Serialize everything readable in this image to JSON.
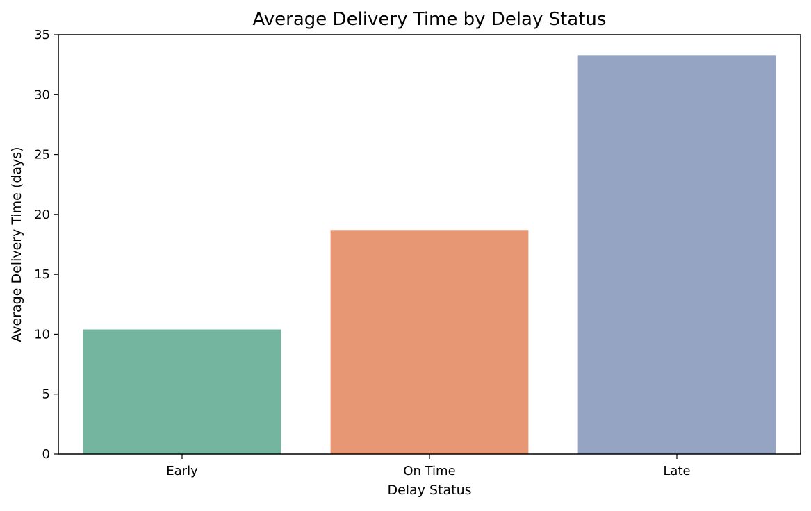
{
  "chart_data": {
    "type": "bar",
    "title": "Average Delivery Time by Delay Status",
    "xlabel": "Delay Status",
    "ylabel": "Average Delivery Time (days)",
    "categories": [
      "Early",
      "On Time",
      "Late"
    ],
    "values": [
      10.4,
      18.7,
      33.3
    ],
    "colors": [
      "#74b59f",
      "#e89774",
      "#95a4c3"
    ],
    "ylim": [
      0,
      35
    ],
    "yticks": [
      0,
      5,
      10,
      15,
      20,
      25,
      30,
      35
    ],
    "grid": false,
    "legend": "none"
  }
}
